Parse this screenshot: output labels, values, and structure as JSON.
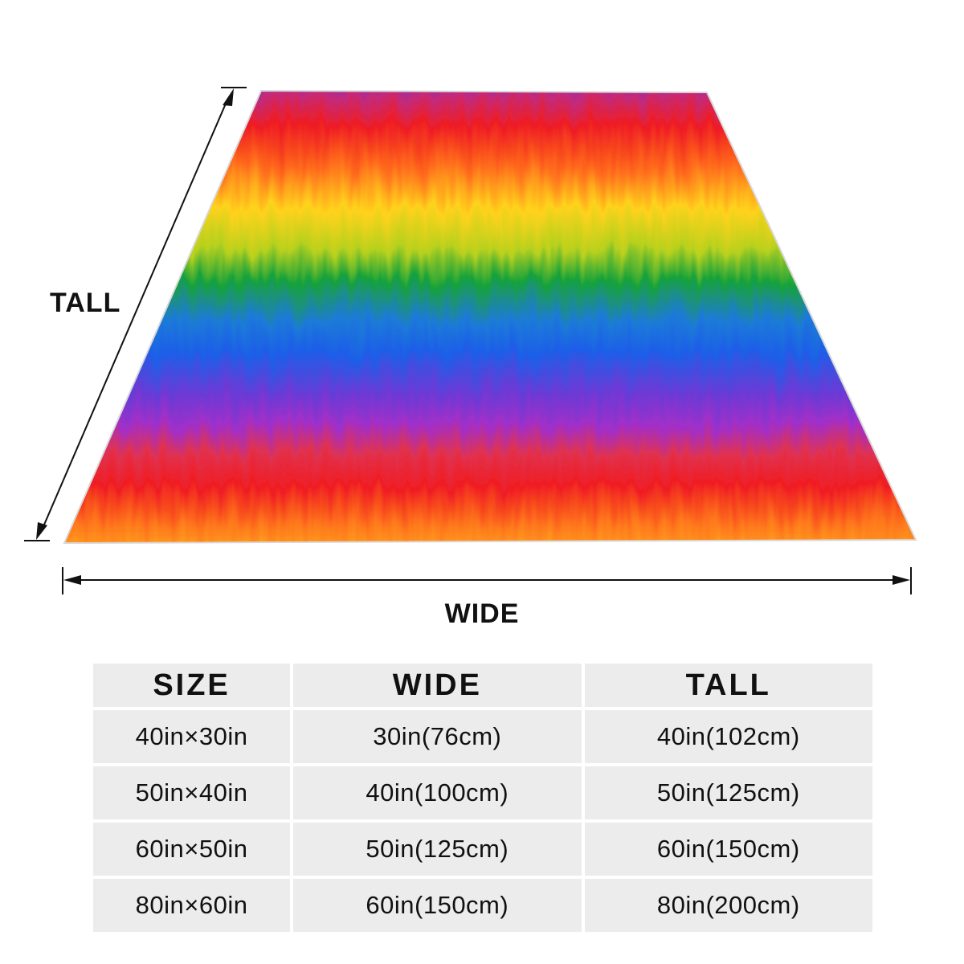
{
  "labels": {
    "tall": "TALL",
    "wide": "WIDE"
  },
  "blanket": {
    "pattern": "rainbow brush-stroke stripes",
    "stripe_colors": [
      "#7b2fd0",
      "#ef1d23",
      "#ffd21e",
      "#18a23a",
      "#1b5fe8",
      "#8a2ed8",
      "#f01d22",
      "#ff8a1a",
      "#ffd324"
    ]
  },
  "table": {
    "headers": [
      "SIZE",
      "WIDE",
      "TALL"
    ],
    "rows": [
      [
        "40in×30in",
        "30in(76cm)",
        "40in(102cm)"
      ],
      [
        "50in×40in",
        "40in(100cm)",
        "50in(125cm)"
      ],
      [
        "60in×50in",
        "50in(125cm)",
        "60in(150cm)"
      ],
      [
        "80in×60in",
        "60in(150cm)",
        "80in(200cm)"
      ]
    ]
  },
  "colors": {
    "table_cell_bg": "#ececec",
    "text": "#111111"
  }
}
